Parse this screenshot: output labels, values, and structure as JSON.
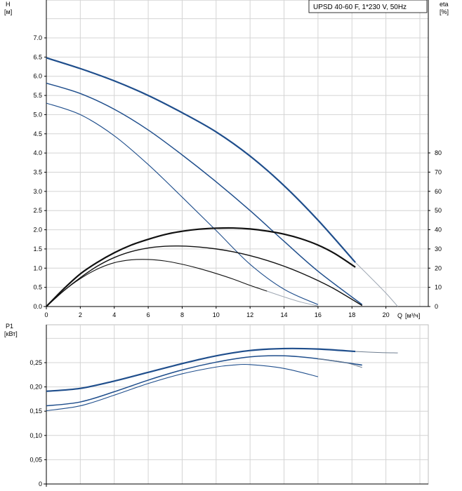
{
  "chart_data": [
    {
      "type": "line",
      "title": "UPSD 40-60 F, 1*230 V, 50Hz",
      "ylabel": "H",
      "yunit": "[м]",
      "y2label": "eta",
      "y2unit": "[%]",
      "xlabel": "Q",
      "xunit": "[м³/ч]",
      "xlim": [
        0,
        22
      ],
      "ylim": [
        0,
        8
      ],
      "y2lim": [
        0,
        100
      ],
      "x_ticks": [
        "0",
        "2",
        "4",
        "6",
        "8",
        "10",
        "12",
        "14",
        "16",
        "18",
        "20"
      ],
      "y_ticks": [
        "0.0",
        "0.5",
        "1.0",
        "1.5",
        "2.0",
        "2.5",
        "3.0",
        "3.5",
        "4.0",
        "4.5",
        "5.0",
        "5.5",
        "6.0",
        "6.5",
        "7.0"
      ],
      "y2_ticks": [
        "0",
        "10",
        "20",
        "30",
        "40",
        "50",
        "60",
        "70",
        "80"
      ],
      "grid": true,
      "colors": {
        "head": "#1f4e8c",
        "efficiency": "#111111",
        "system": "#9ea7b3"
      },
      "head_curves": [
        {
          "x": [
            0,
            2,
            4,
            6,
            8,
            10,
            12,
            14,
            16,
            18.2
          ],
          "y": [
            6.48,
            6.2,
            5.88,
            5.5,
            5.05,
            4.55,
            3.92,
            3.15,
            2.25,
            1.15
          ]
        },
        {
          "x": [
            0,
            2,
            4,
            6,
            8,
            10,
            12,
            14,
            16,
            18.6
          ],
          "y": [
            5.82,
            5.55,
            5.14,
            4.6,
            3.95,
            3.25,
            2.5,
            1.7,
            0.92,
            0.05
          ]
        },
        {
          "x": [
            0,
            2,
            4,
            6,
            8,
            10,
            12,
            14,
            16
          ],
          "y": [
            5.3,
            5.0,
            4.45,
            3.7,
            2.85,
            1.98,
            1.1,
            0.45,
            0.05
          ]
        }
      ],
      "head_curve_extensions": [
        {
          "x": [
            18.2,
            19,
            20,
            20.7
          ],
          "y": [
            1.15,
            0.8,
            0.35,
            0.0
          ]
        }
      ],
      "efficiency_curves": [
        {
          "x": [
            0,
            1,
            2,
            3,
            4,
            5,
            6,
            7,
            8,
            9,
            10,
            11,
            12,
            13,
            14,
            15,
            16,
            17,
            18.2
          ],
          "y": [
            0,
            9,
            17,
            23,
            28,
            32,
            35,
            37.5,
            39.2,
            40.3,
            40.8,
            40.9,
            40.4,
            39.3,
            37.7,
            35.3,
            32.0,
            27.5,
            20.5
          ]
        },
        {
          "x": [
            0,
            1,
            2,
            3,
            4,
            5,
            6,
            7,
            8,
            9,
            10,
            11,
            12,
            13,
            14,
            15,
            16,
            17,
            18.6
          ],
          "y": [
            0,
            8,
            15,
            21,
            25.5,
            28.6,
            30.5,
            31.4,
            31.5,
            31.0,
            30.0,
            28.5,
            26.5,
            24.0,
            21.0,
            17.5,
            13.5,
            9.0,
            0.5
          ]
        },
        {
          "x": [
            0,
            1,
            2,
            3,
            4,
            5,
            6,
            7,
            8,
            9,
            10,
            11,
            12,
            13
          ],
          "y": [
            0,
            8,
            14.5,
            19.5,
            22.8,
            24.3,
            24.5,
            23.7,
            22.0,
            19.8,
            17.2,
            14.3,
            11.0,
            8.0
          ]
        }
      ],
      "efficiency_extensions": [
        {
          "x": [
            13,
            14,
            15,
            16
          ],
          "y": [
            8.0,
            5.0,
            2.3,
            0.3
          ]
        }
      ]
    },
    {
      "type": "line",
      "ylabel": "P1",
      "yunit": "[кВт]",
      "xlim": [
        0,
        22
      ],
      "ylim": [
        0,
        0.3
      ],
      "y_ticks": [
        "0",
        "0,05",
        "0,10",
        "0,15",
        "0,20",
        "0,25"
      ],
      "grid": true,
      "colors": {
        "power": "#1f4e8c"
      },
      "power_curves": [
        {
          "x": [
            0,
            2,
            4,
            6,
            8,
            10,
            12,
            14,
            16,
            18.2
          ],
          "y": [
            0.191,
            0.197,
            0.212,
            0.23,
            0.248,
            0.264,
            0.275,
            0.279,
            0.278,
            0.273
          ]
        },
        {
          "x": [
            0,
            2,
            4,
            6,
            8,
            10,
            12,
            14,
            16,
            18.6
          ],
          "y": [
            0.161,
            0.169,
            0.19,
            0.214,
            0.235,
            0.251,
            0.262,
            0.264,
            0.258,
            0.245
          ]
        },
        {
          "x": [
            0,
            2,
            4,
            6,
            8,
            10,
            11,
            12,
            14,
            16
          ],
          "y": [
            0.151,
            0.161,
            0.183,
            0.207,
            0.227,
            0.241,
            0.245,
            0.246,
            0.238,
            0.221
          ]
        }
      ],
      "power_extensions": [
        {
          "x": [
            18.2,
            19.5,
            20.7
          ],
          "y": [
            0.273,
            0.271,
            0.27
          ]
        },
        {
          "x": [
            16,
            17.5,
            18.6
          ],
          "y": [
            0.258,
            0.251,
            0.24
          ]
        }
      ]
    }
  ]
}
